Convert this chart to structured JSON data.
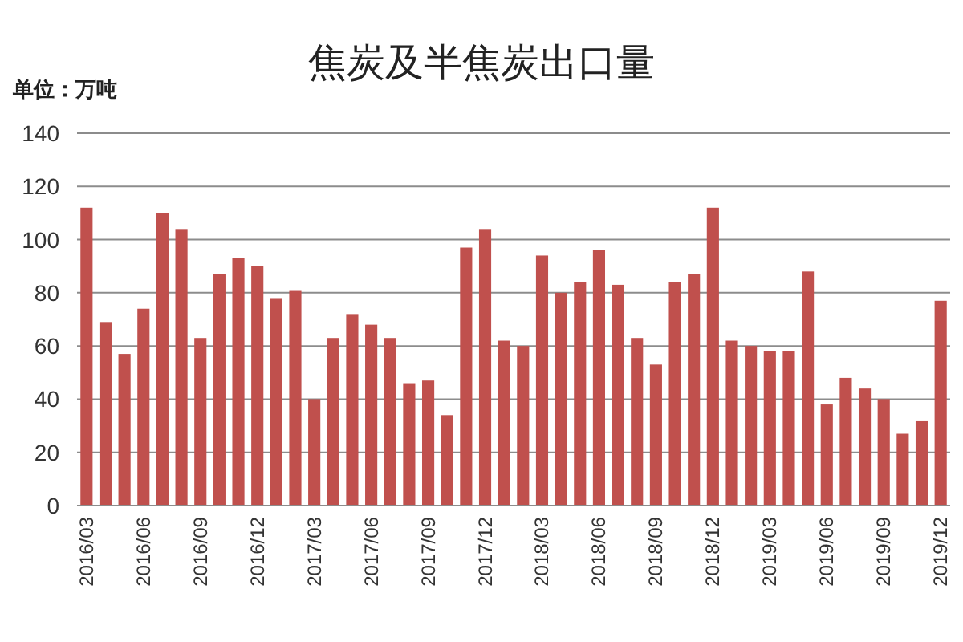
{
  "chart_data": {
    "type": "bar",
    "title": "焦炭及半焦炭出口量",
    "ylabel": "单位：万吨",
    "categories": [
      "2016/03",
      null,
      null,
      "2016/06",
      null,
      null,
      "2016/09",
      null,
      null,
      "2016/12",
      null,
      null,
      "2017/03",
      null,
      null,
      "2017/06",
      null,
      null,
      "2017/09",
      null,
      null,
      "2017/12",
      null,
      null,
      "2018/03",
      null,
      null,
      "2018/06",
      null,
      null,
      "2018/09",
      null,
      null,
      "2018/12",
      null,
      null,
      "2019/03",
      null,
      null,
      "2019/06",
      null,
      null,
      "2019/09",
      null,
      null,
      "2019/12"
    ],
    "values": [
      112,
      69,
      57,
      74,
      110,
      104,
      63,
      87,
      93,
      90,
      78,
      81,
      40,
      63,
      72,
      68,
      63,
      46,
      47,
      34,
      97,
      104,
      62,
      60,
      94,
      80,
      84,
      96,
      83,
      63,
      53,
      84,
      87,
      112,
      62,
      60,
      58,
      58,
      88,
      38,
      48,
      44,
      40,
      27,
      32,
      77
    ],
    "color": "#c0504d",
    "ylim": [
      0,
      140
    ],
    "yticks": [
      0,
      20,
      40,
      60,
      80,
      100,
      120,
      140
    ],
    "grid": "y"
  }
}
